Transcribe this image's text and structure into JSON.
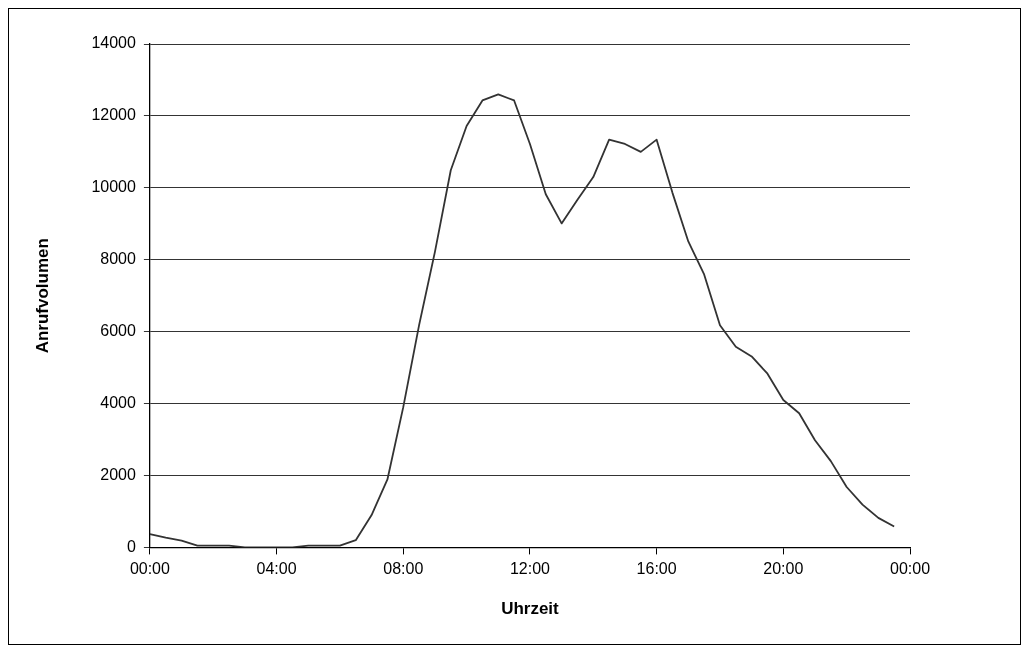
{
  "chart_data": {
    "type": "line",
    "xlabel": "Uhrzeit",
    "ylabel": "Anrufvolumen",
    "x": [
      0,
      0.5,
      1,
      1.5,
      2,
      2.5,
      3,
      3.5,
      4,
      4.5,
      5,
      5.5,
      6,
      6.5,
      7,
      7.5,
      8,
      8.5,
      9,
      9.5,
      10,
      10.5,
      11,
      11.5,
      12,
      12.5,
      13,
      13.5,
      14,
      14.5,
      15,
      15.5,
      16,
      16.5,
      17,
      17.5,
      18,
      18.5,
      19,
      19.5,
      20,
      20.5,
      21,
      21.5,
      22,
      22.5,
      23,
      23.5
    ],
    "series": [
      {
        "color": "#333333",
        "values": [
          370,
          270,
          190,
          50,
          50,
          50,
          0,
          0,
          0,
          0,
          50,
          50,
          50,
          200,
          900,
          1890,
          3900,
          6180,
          8220,
          10490,
          11720,
          12430,
          12600,
          12430,
          11220,
          9820,
          9010,
          9670,
          10300,
          11340,
          11220,
          11000,
          11340,
          9860,
          8510,
          7590,
          6180,
          5580,
          5310,
          4830,
          4100,
          3730,
          2980,
          2400,
          1680,
          1190,
          820,
          580
        ]
      }
    ],
    "xlim": [
      0,
      24
    ],
    "xticks": [
      {
        "value": 0,
        "label": "00:00"
      },
      {
        "value": 4,
        "label": "04:00"
      },
      {
        "value": 8,
        "label": "08:00"
      },
      {
        "value": 12,
        "label": "12:00"
      },
      {
        "value": 16,
        "label": "16:00"
      },
      {
        "value": 20,
        "label": "20:00"
      },
      {
        "value": 24,
        "label": "00:00"
      }
    ],
    "ylim": [
      0,
      14000
    ],
    "yticks": [
      0,
      2000,
      4000,
      6000,
      8000,
      10000,
      12000,
      14000
    ],
    "grid": "y",
    "legend": false,
    "marker": "none",
    "line_style": "solid"
  }
}
